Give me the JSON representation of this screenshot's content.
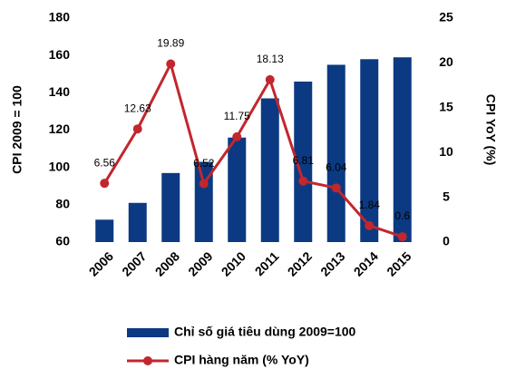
{
  "chart_data": {
    "type": "bar",
    "categories": [
      "2006",
      "2007",
      "2008",
      "2009",
      "2010",
      "2011",
      "2012",
      "2013",
      "2014",
      "2015"
    ],
    "series": [
      {
        "name": "Chỉ số giá tiêu dùng 2009=100",
        "type": "bar",
        "color": "#0b3a82",
        "axis": "y",
        "values": [
          72,
          81,
          97,
          103,
          116,
          137,
          146,
          155,
          158,
          159
        ]
      },
      {
        "name": "CPI hàng năm (% YoY)",
        "type": "line",
        "color": "#c1272d",
        "axis": "y2",
        "values": [
          6.56,
          12.63,
          19.89,
          6.52,
          11.75,
          18.13,
          6.81,
          6.04,
          1.84,
          0.6
        ]
      }
    ],
    "ylabel": "CPI 2009 = 100",
    "y2label": "CPI YoY (%)",
    "ylim": [
      60,
      180
    ],
    "yticks": [
      60,
      80,
      100,
      120,
      140,
      160,
      180
    ],
    "y2lim": [
      0,
      25
    ],
    "y2ticks": [
      0,
      5,
      10,
      15,
      20,
      25
    ],
    "grid": false,
    "legend": "bottom"
  }
}
